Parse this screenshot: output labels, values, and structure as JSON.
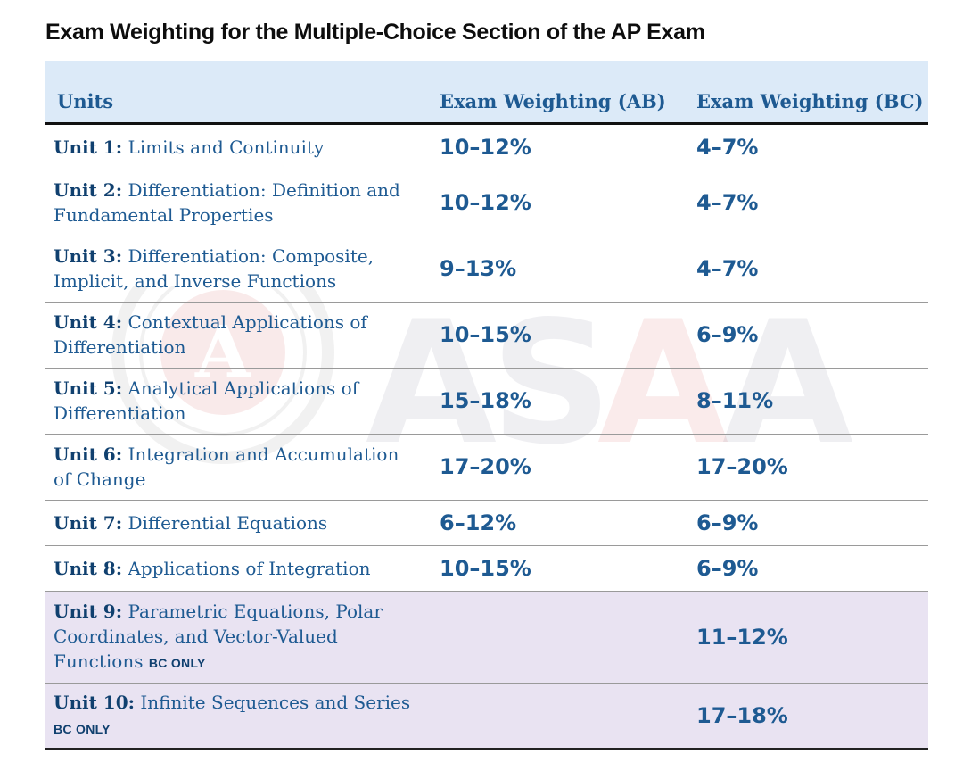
{
  "title": "Exam Weighting for the Multiple-Choice Section of the AP Exam",
  "colors": {
    "header_bg": "#dceaf8",
    "text_blue": "#1e5a92",
    "unit_label_blue": "#10406f",
    "bc_only_row_bg": "#e9e3f2"
  },
  "table": {
    "headers": {
      "units": "Units",
      "ab": "Exam Weighting (AB)",
      "bc": "Exam Weighting (BC)"
    },
    "rows": [
      {
        "unit": "Unit 1:",
        "name": "Limits and Continuity",
        "tag": "",
        "ab": "10–12%",
        "bc": "4–7%"
      },
      {
        "unit": "Unit 2:",
        "name": "Differentiation: Definition and Fundamental Properties",
        "tag": "",
        "ab": "10–12%",
        "bc": "4–7%"
      },
      {
        "unit": "Unit 3:",
        "name": "Differentiation: Composite, Implicit, and Inverse Functions",
        "tag": "",
        "ab": "9–13%",
        "bc": "4–7%"
      },
      {
        "unit": "Unit 4:",
        "name": "Contextual Applications of Differentiation",
        "tag": "",
        "ab": "10–15%",
        "bc": "6–9%"
      },
      {
        "unit": "Unit 5:",
        "name": "Analytical Applications of Differentiation",
        "tag": "",
        "ab": "15–18%",
        "bc": "8–11%"
      },
      {
        "unit": "Unit 6:",
        "name": "Integration and Accumulation of Change",
        "tag": "",
        "ab": "17–20%",
        "bc": "17–20%"
      },
      {
        "unit": "Unit 7:",
        "name": "Differential Equations",
        "tag": "",
        "ab": "6–12%",
        "bc": "6–9%"
      },
      {
        "unit": "Unit 8:",
        "name": "Applications of Integration",
        "tag": "",
        "ab": "10–15%",
        "bc": "6–9%"
      },
      {
        "unit": "Unit 9:",
        "name": "Parametric Equations, Polar Coordinates, and Vector-Valued Functions",
        "tag": "BC ONLY",
        "ab": "",
        "bc": "11–12%"
      },
      {
        "unit": "Unit 10:",
        "name": "Infinite Sequences and Series",
        "tag": "BC ONLY",
        "ab": "",
        "bc": "17–18%"
      }
    ]
  },
  "watermark": {
    "letters": [
      "A",
      "S",
      "A",
      "A"
    ],
    "seal_letter": "A"
  }
}
